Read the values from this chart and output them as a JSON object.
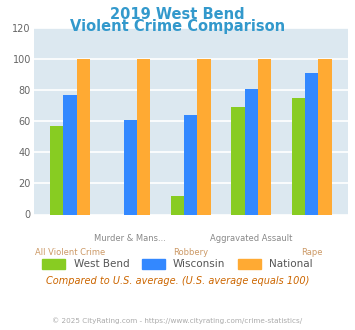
{
  "title_line1": "2019 West Bend",
  "title_line2": "Violent Crime Comparison",
  "title_color": "#3399cc",
  "cat_top": [
    "",
    "Murder & Mans...",
    "",
    "Aggravated Assault",
    ""
  ],
  "cat_bottom": [
    "All Violent Crime",
    "",
    "Robbery",
    "",
    "Rape"
  ],
  "west_bend": [
    57,
    0,
    12,
    69,
    75
  ],
  "wisconsin": [
    77,
    61,
    64,
    81,
    91
  ],
  "national": [
    100,
    100,
    100,
    100,
    100
  ],
  "west_bend_color": "#88cc22",
  "wisconsin_color": "#3388ff",
  "national_color": "#ffaa33",
  "ylim": [
    0,
    120
  ],
  "yticks": [
    0,
    20,
    40,
    60,
    80,
    100,
    120
  ],
  "background_color": "#dce8f0",
  "grid_color": "#ffffff",
  "note": "Compared to U.S. average. (U.S. average equals 100)",
  "note_color": "#cc6600",
  "copyright": "© 2025 CityRating.com - https://www.cityrating.com/crime-statistics/",
  "copyright_color": "#aaaaaa",
  "legend_labels": [
    "West Bend",
    "Wisconsin",
    "National"
  ],
  "bar_width": 0.22
}
